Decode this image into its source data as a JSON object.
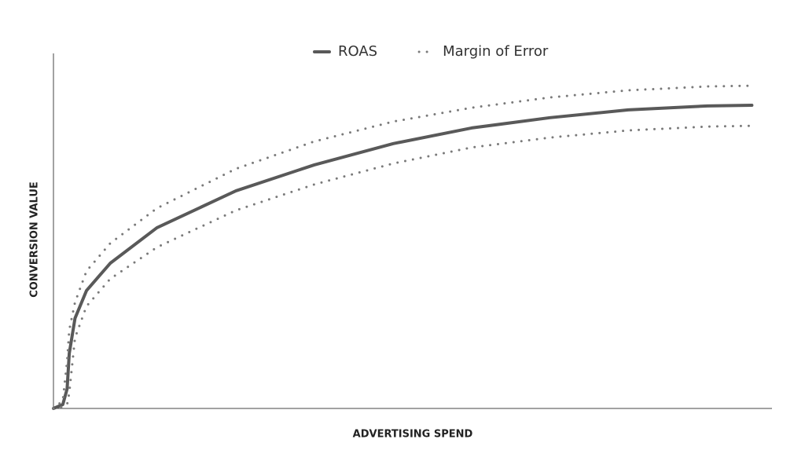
{
  "chart_data": {
    "type": "line",
    "x_label": "ADVERTISING SPEND",
    "y_label": "CONVERSION VALUE",
    "x": [
      0,
      1.3,
      1.9,
      2.2,
      3.0,
      4.6,
      7.9,
      14.4,
      25.4,
      36.3,
      47.3,
      58.2,
      69.1,
      80.0,
      91.0,
      97.2
    ],
    "series": [
      {
        "name": "ROAS",
        "color": "#595959",
        "style": "solid",
        "values": [
          0,
          1.1,
          5.5,
          15.5,
          25.4,
          33.2,
          40.9,
          50.9,
          61.3,
          68.6,
          74.6,
          79.0,
          81.9,
          84.1,
          85.2,
          85.4
        ]
      },
      {
        "name": "Margin of Error",
        "color": "#7a7a7a",
        "style": "dotted",
        "upper": [
          0,
          2.2,
          13.3,
          22.1,
          29.9,
          38.7,
          46.5,
          56.4,
          67.5,
          75.2,
          80.8,
          84.7,
          87.6,
          89.6,
          90.7,
          90.9
        ],
        "lower": [
          0,
          0.4,
          1.1,
          4.4,
          19.9,
          28.8,
          36.5,
          45.4,
          55.8,
          63.1,
          69.0,
          73.5,
          76.3,
          78.3,
          79.4,
          79.6
        ]
      }
    ],
    "xlim": [
      0,
      100
    ],
    "ylim": [
      0,
      100
    ],
    "legend": "top"
  }
}
